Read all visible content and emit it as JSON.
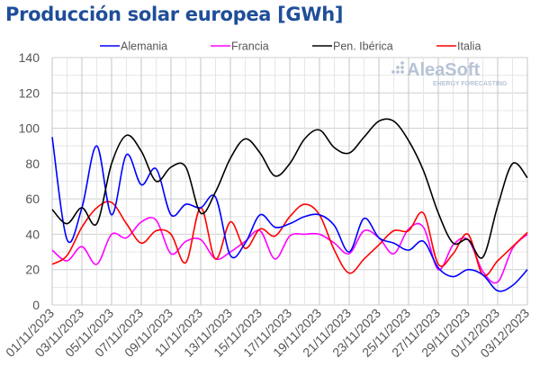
{
  "title": "Producción solar europea [GWh]",
  "watermark": {
    "name": "AleaSoft",
    "tagline": "ENERGY FORECASTING"
  },
  "chart_data": {
    "type": "line",
    "title": "Producción solar europea [GWh]",
    "xlabel": "",
    "ylabel": "",
    "ylim": [
      0,
      140
    ],
    "yticks": [
      0,
      20,
      40,
      60,
      80,
      100,
      120,
      140
    ],
    "grid": true,
    "legend_position": "top",
    "x": [
      "01/11/2023",
      "02/11/2023",
      "03/11/2023",
      "04/11/2023",
      "05/11/2023",
      "06/11/2023",
      "07/11/2023",
      "08/11/2023",
      "09/11/2023",
      "10/11/2023",
      "11/11/2023",
      "12/11/2023",
      "13/11/2023",
      "14/11/2023",
      "15/11/2023",
      "16/11/2023",
      "17/11/2023",
      "18/11/2023",
      "19/11/2023",
      "20/11/2023",
      "21/11/2023",
      "22/11/2023",
      "23/11/2023",
      "24/11/2023",
      "25/11/2023",
      "26/11/2023",
      "27/11/2023",
      "28/11/2023",
      "29/11/2023",
      "30/11/2023",
      "01/12/2023",
      "02/12/2023",
      "03/12/2023"
    ],
    "xtick_labels": [
      "01/11/2023",
      "03/11/2023",
      "05/11/2023",
      "07/11/2023",
      "09/11/2023",
      "11/11/2023",
      "13/11/2023",
      "15/11/2023",
      "17/11/2023",
      "19/11/2023",
      "21/11/2023",
      "23/11/2023",
      "25/11/2023",
      "27/11/2023",
      "29/11/2023",
      "01/12/2023",
      "03/12/2023"
    ],
    "series": [
      {
        "name": "Alemania",
        "color": "#0000ff",
        "values": [
          95,
          37,
          55,
          90,
          51,
          85,
          68,
          77,
          51,
          57,
          55,
          61,
          28,
          35,
          51,
          44,
          46,
          50,
          51,
          45,
          30,
          49,
          38,
          35,
          31,
          36,
          21,
          16,
          20,
          17,
          8,
          11,
          20
        ]
      },
      {
        "name": "Francia",
        "color": "#ff00ff",
        "values": [
          31,
          25,
          33,
          23,
          40,
          38,
          47,
          48,
          29,
          36,
          37,
          26,
          30,
          36,
          42,
          26,
          39,
          40,
          40,
          35,
          29,
          42,
          38,
          29,
          43,
          44,
          20,
          34,
          37,
          19,
          13,
          32,
          40
        ]
      },
      {
        "name": "Pen. Ibérica",
        "color": "#000000",
        "values": [
          54,
          46,
          55,
          46,
          80,
          96,
          87,
          70,
          78,
          78,
          52,
          64,
          83,
          94,
          86,
          73,
          80,
          94,
          99,
          89,
          86,
          95,
          104,
          104,
          93,
          76,
          52,
          35,
          37,
          27,
          56,
          80,
          72
        ]
      },
      {
        "name": "Italia",
        "color": "#ff0000",
        "values": [
          23,
          28,
          44,
          55,
          58,
          46,
          35,
          42,
          40,
          24,
          55,
          26,
          47,
          32,
          43,
          39,
          50,
          57,
          51,
          31,
          18,
          26,
          34,
          42,
          42,
          52,
          23,
          29,
          40,
          17,
          25,
          33,
          41
        ]
      }
    ]
  }
}
